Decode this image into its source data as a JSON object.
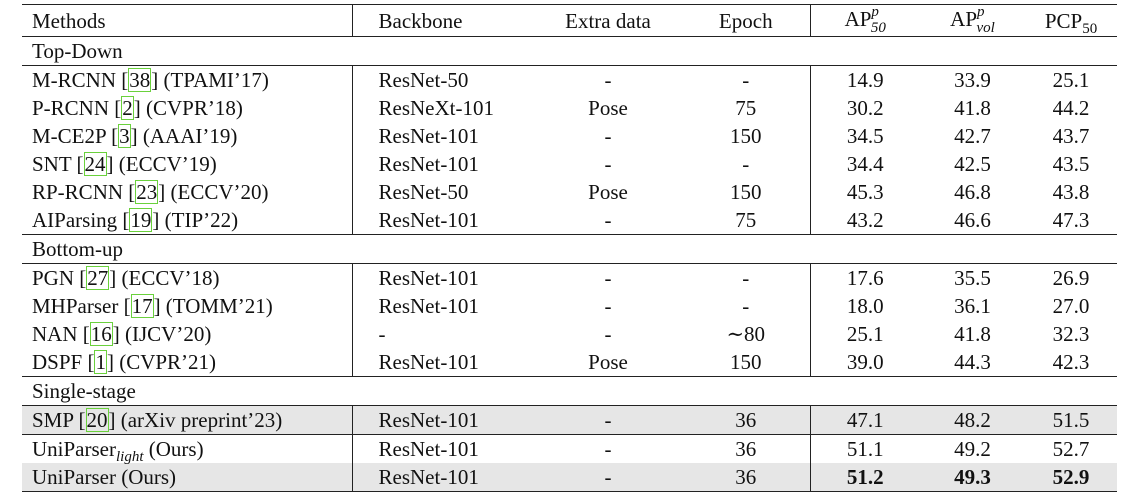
{
  "headers": {
    "methods": "Methods",
    "backbone": "Backbone",
    "extra": "Extra data",
    "epoch": "Epoch",
    "ap50_base": "AP",
    "ap50_sup": "p",
    "ap50_sub": "50",
    "apvol_base": "AP",
    "apvol_sup": "p",
    "apvol_sub": "vol",
    "pcp_base": "PCP",
    "pcp_sub": "50"
  },
  "groups": {
    "topdown": "Top-Down",
    "bottomup": "Bottom-up",
    "single": "Single-stage"
  },
  "topdown_rows": [
    {
      "pre": "M-RCNN [",
      "cite": "38",
      "post": "] (TPAMI’17)",
      "backbone": "ResNet-50",
      "extra": "-",
      "epoch": "-",
      "ap50": "14.9",
      "apvol": "33.9",
      "pcp": "25.1"
    },
    {
      "pre": "P-RCNN [",
      "cite": "2",
      "post": "] (CVPR’18)",
      "backbone": "ResNeXt-101",
      "extra": "Pose",
      "epoch": "75",
      "ap50": "30.2",
      "apvol": "41.8",
      "pcp": "44.2"
    },
    {
      "pre": "M-CE2P [",
      "cite": "3",
      "post": "] (AAAI’19)",
      "backbone": "ResNet-101",
      "extra": "-",
      "epoch": "150",
      "ap50": "34.5",
      "apvol": "42.7",
      "pcp": "43.7"
    },
    {
      "pre": "SNT [",
      "cite": "24",
      "post": "] (ECCV’19)",
      "backbone": "ResNet-101",
      "extra": "-",
      "epoch": "-",
      "ap50": "34.4",
      "apvol": "42.5",
      "pcp": "43.5"
    },
    {
      "pre": "RP-RCNN [",
      "cite": "23",
      "post": "] (ECCV’20)",
      "backbone": "ResNet-50",
      "extra": "Pose",
      "epoch": "150",
      "ap50": "45.3",
      "apvol": "46.8",
      "pcp": "43.8"
    },
    {
      "pre": "AIParsing [",
      "cite": "19",
      "post": "] (TIP’22)",
      "backbone": "ResNet-101",
      "extra": "-",
      "epoch": "75",
      "ap50": "43.2",
      "apvol": "46.6",
      "pcp": "47.3"
    }
  ],
  "bottomup_rows": [
    {
      "pre": "PGN [",
      "cite": "27",
      "post": "] (ECCV’18)",
      "backbone": "ResNet-101",
      "extra": "-",
      "epoch": "-",
      "ap50": "17.6",
      "apvol": "35.5",
      "pcp": "26.9"
    },
    {
      "pre": "MHParser [",
      "cite": "17",
      "post": "] (TOMM’21)",
      "backbone": "ResNet-101",
      "extra": "-",
      "epoch": "-",
      "ap50": "18.0",
      "apvol": "36.1",
      "pcp": "27.0"
    },
    {
      "pre": "NAN [",
      "cite": "16",
      "post": "] (IJCV’20)",
      "backbone": "-",
      "extra": "-",
      "epoch": "∼80",
      "ap50": "25.1",
      "apvol": "41.8",
      "pcp": "32.3"
    },
    {
      "pre": "DSPF [",
      "cite": "1",
      "post": "] (CVPR’21)",
      "backbone": "ResNet-101",
      "extra": "Pose",
      "epoch": "150",
      "ap50": "39.0",
      "apvol": "44.3",
      "pcp": "42.3"
    }
  ],
  "single_rows": {
    "smp": {
      "pre": "SMP [",
      "cite": "20",
      "post": "] (arXiv preprint’23)",
      "backbone": "ResNet-101",
      "extra": "-",
      "epoch": "36",
      "ap50": "47.1",
      "apvol": "48.2",
      "pcp": "51.5"
    },
    "light": {
      "name": "UniParser",
      "sub": "light",
      "post": " (Ours)",
      "backbone": "ResNet-101",
      "extra": "-",
      "epoch": "36",
      "ap50": "51.1",
      "apvol": "49.2",
      "pcp": "52.7"
    },
    "full": {
      "name": "UniParser (Ours)",
      "backbone": "ResNet-101",
      "extra": "-",
      "epoch": "36",
      "ap50": "51.2",
      "apvol": "49.3",
      "pcp": "52.9"
    }
  }
}
